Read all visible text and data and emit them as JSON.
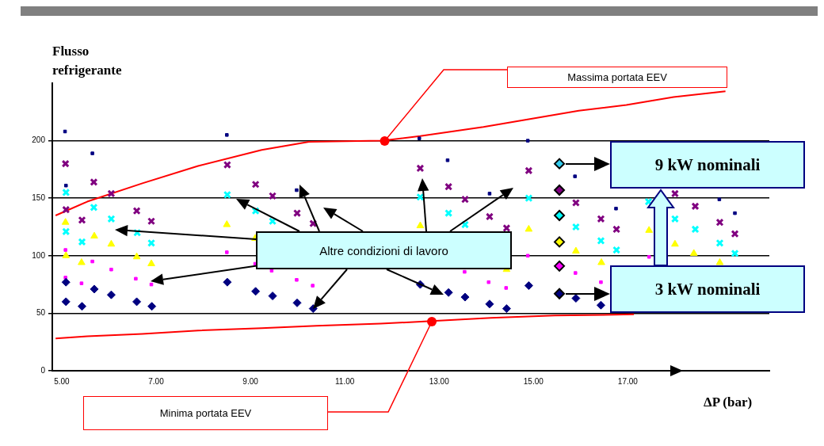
{
  "chart_data": {
    "type": "scatter",
    "ylabel": "Flusso refrigerante",
    "xlabel": "ΔP (bar)",
    "xlim": [
      4.8,
      20
    ],
    "ylim": [
      0,
      250
    ],
    "xticks": [
      {
        "value": 5,
        "label": "5.00"
      },
      {
        "value": 7,
        "label": "7.00"
      },
      {
        "value": 9,
        "label": "9.00"
      },
      {
        "value": 11,
        "label": "11.00"
      },
      {
        "value": 13,
        "label": "13.00"
      },
      {
        "value": 15,
        "label": "15.00"
      },
      {
        "value": 17,
        "label": "17.00"
      }
    ],
    "yticks": [
      0,
      50,
      100,
      150,
      200
    ],
    "grid": "y",
    "legend": false,
    "series": [
      {
        "type": "line",
        "color": "#ff0000",
        "marker": "none",
        "x": [
          4.87,
          5.54,
          6.71,
          7.89,
          9.24,
          10.24,
          11.8,
          12.6,
          13.94,
          14.95,
          15.96,
          16.97,
          17.97,
          19.07
        ],
        "values": [
          135,
          147,
          163,
          178,
          192,
          199,
          200,
          204,
          212,
          219,
          226,
          231,
          238,
          243
        ]
      },
      {
        "type": "line",
        "color": "#ff0000",
        "marker": "none",
        "x": [
          4.87,
          5.54,
          6.71,
          7.89,
          9.24,
          10.4,
          11.76,
          12.77,
          14.1,
          15.45,
          17.13
        ],
        "values": [
          28,
          30,
          32,
          35,
          37,
          39,
          41,
          43,
          46,
          48,
          49
        ]
      },
      {
        "color": "#000080",
        "marker": "diamond",
        "x": [
          5.09,
          5.09,
          5.43,
          5.69,
          6.05,
          6.59,
          6.91,
          8.51,
          9.11,
          9.47,
          9.99,
          10.33,
          12.6,
          13.2,
          13.55,
          14.07,
          14.43,
          14.9,
          15.9,
          16.43
        ],
        "values": [
          77,
          60,
          56,
          71,
          66,
          60,
          56,
          77,
          69,
          65,
          59,
          54,
          75,
          68,
          64,
          58,
          54,
          74,
          63,
          57
        ]
      },
      {
        "color": "#ff00ff",
        "marker": "square",
        "x": [
          5.08,
          5.08,
          5.42,
          5.65,
          6.05,
          6.57,
          6.9,
          8.5,
          9.1,
          9.45,
          9.98,
          10.32,
          13.54,
          14.05,
          14.42,
          14.88,
          15.89,
          16.43,
          17.45
        ],
        "values": [
          105,
          81,
          76,
          95,
          88,
          80,
          75,
          103,
          93,
          87,
          79,
          74,
          86,
          77,
          72,
          100,
          85,
          77,
          99
        ]
      },
      {
        "color": "#ffff00",
        "marker": "triangle",
        "x": [
          5.08,
          5.09,
          5.42,
          5.69,
          6.05,
          6.59,
          6.9,
          8.5,
          9.1,
          12.6,
          14.43,
          14.9,
          15.9,
          16.44,
          17.45,
          18.0,
          18.4,
          18.95
        ],
        "values": [
          129,
          100,
          94,
          117,
          110,
          99,
          93,
          127,
          115,
          126,
          88,
          123,
          104,
          94,
          122,
          110,
          102,
          94
        ]
      },
      {
        "color": "#00ffff",
        "marker": "cross",
        "x": [
          5.09,
          5.09,
          5.43,
          5.68,
          6.05,
          6.6,
          6.9,
          8.51,
          9.11,
          9.47,
          12.6,
          13.2,
          13.55,
          14.9,
          15.9,
          16.43,
          16.76,
          17.44,
          18.0,
          18.43,
          18.95,
          19.27
        ],
        "values": [
          155,
          121,
          112,
          142,
          132,
          120,
          111,
          153,
          139,
          130,
          151,
          137,
          127,
          150,
          125,
          113,
          105,
          147,
          132,
          123,
          111,
          102
        ]
      },
      {
        "color": "#800080",
        "marker": "cross",
        "x": [
          5.08,
          5.09,
          5.43,
          5.68,
          6.05,
          6.59,
          6.9,
          8.51,
          9.11,
          9.47,
          9.99,
          10.33,
          12.6,
          13.2,
          13.55,
          14.07,
          14.43,
          14.9,
          15.9,
          16.43,
          16.76,
          18.0,
          18.43,
          18.95,
          19.27
        ],
        "values": [
          180,
          140,
          131,
          164,
          154,
          139,
          130,
          179,
          162,
          152,
          137,
          128,
          176,
          160,
          149,
          134,
          124,
          174,
          146,
          132,
          123,
          154,
          143,
          129,
          119
        ]
      },
      {
        "color": "#000080",
        "marker": "square",
        "x": [
          5.07,
          5.09,
          5.65,
          8.5,
          9.98,
          12.58,
          13.18,
          14.07,
          14.88,
          15.88,
          16.75,
          18.94,
          19.27
        ],
        "values": [
          208,
          161,
          189,
          205,
          157,
          202,
          183,
          154,
          200,
          169,
          141,
          149,
          137
        ]
      },
      {
        "marker": "diamond",
        "x": [
          15.55,
          15.55,
          15.55,
          15.55,
          15.55,
          15.55
        ],
        "values": [
          180,
          157,
          135,
          112,
          91,
          67
        ],
        "colors": [
          "#33ccee",
          "#800080",
          "#00ffff",
          "#ffff00",
          "#ff00ff",
          "#000080"
        ]
      }
    ],
    "annotations": [
      "Massima portata EEV",
      "Minima portata EEV",
      "Altre condizioni di lavoro",
      "9 kW nominali",
      "3 kW nominali"
    ]
  }
}
